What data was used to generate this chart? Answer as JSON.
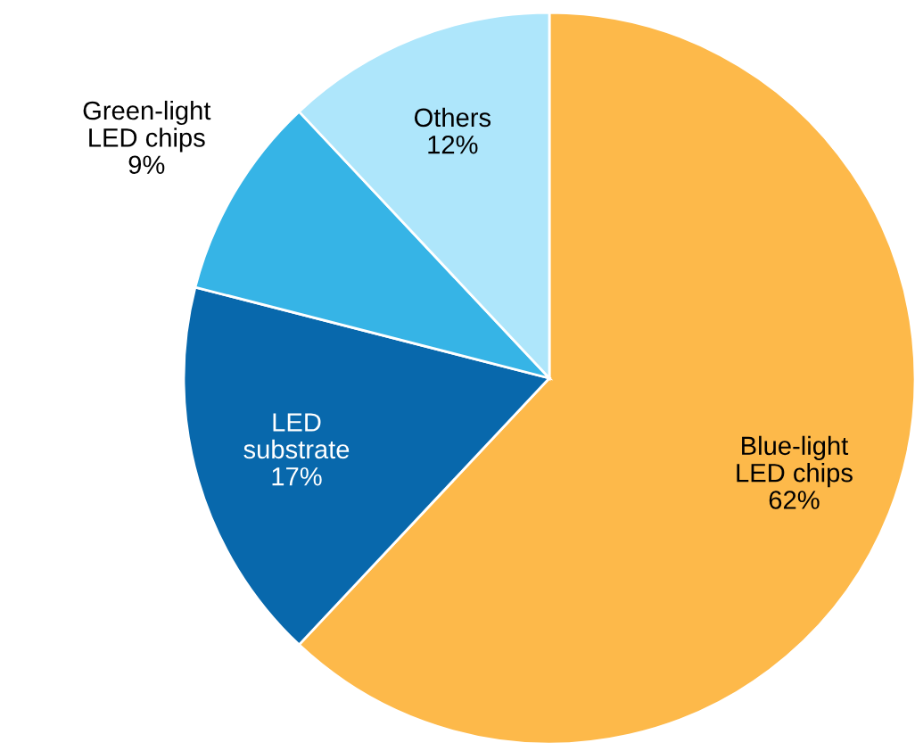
{
  "chart_data": {
    "type": "pie",
    "categories": [
      "Blue-light\nLED chips",
      "LED\nsubstrate",
      "Green-light\nLED chips",
      "Others"
    ],
    "values": [
      62,
      17,
      9,
      12
    ],
    "colors": [
      "#fdb94a",
      "#0868ac",
      "#36b4e6",
      "#aee6fb"
    ],
    "value_labels": [
      "62%",
      "17%",
      "9%",
      "12%"
    ]
  }
}
